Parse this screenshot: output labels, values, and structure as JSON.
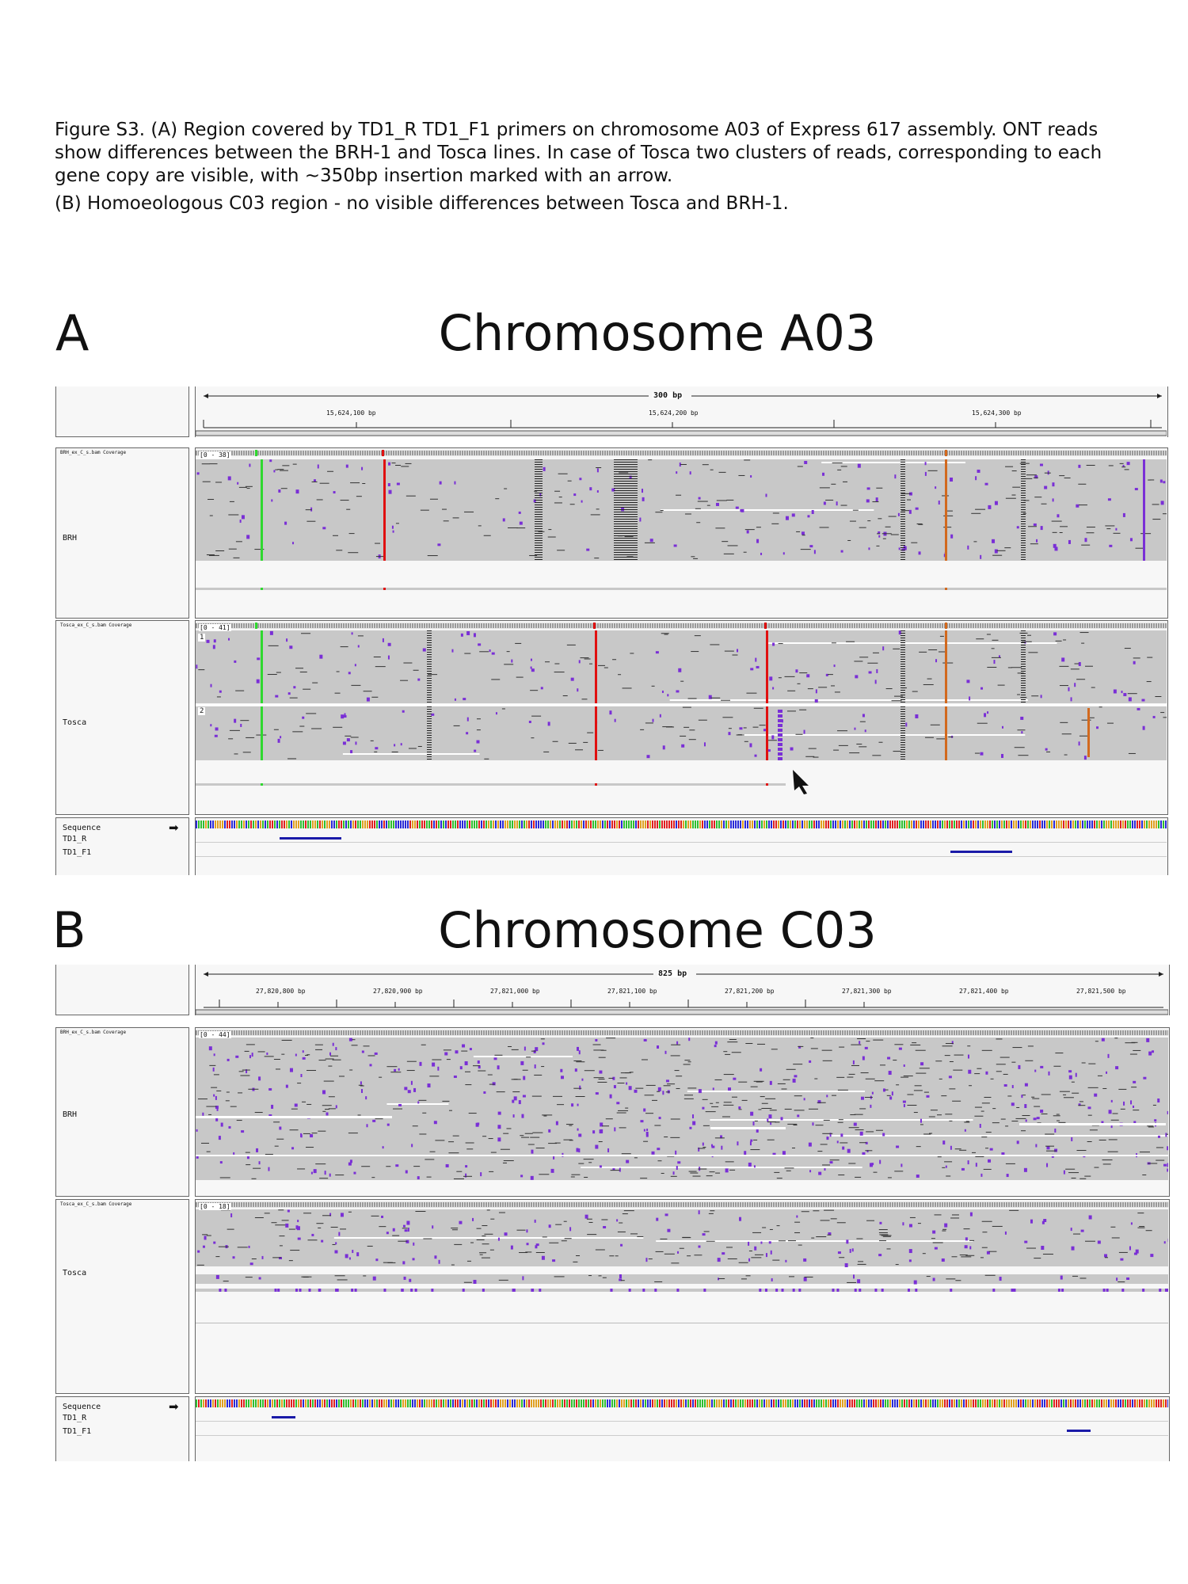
{
  "caption": {
    "line_a": "Figure S3. (A) Region covered by TD1_R TD1_F1 primers on chromosome A03 of Express 617 assembly. ONT reads show differences between the BRH-1 and Tosca lines. In case of Tosca two clusters of reads, corresponding to each gene copy are visible, with ~350bp insertion marked with an arrow.",
    "line_b": "(B) Homoeologous C03 region - no visible differences between Tosca and BRH-1."
  },
  "panels": [
    {
      "letter": "A",
      "title": "Chromosome A03",
      "span_label": "300 bp",
      "ticks": [
        "15,624,100 bp",
        "15,624,200 bp",
        "15,624,300 bp"
      ],
      "tracks": [
        {
          "coverage_label": "BRH_ex_C_s.bam Coverage",
          "range": "[0 - 38]",
          "name": "BRH"
        },
        {
          "coverage_label": "Tosca_ex_C_s.bam Coverage",
          "range": "[0 - 41]",
          "name": "Tosca",
          "clusters": [
            "1",
            "2"
          ]
        }
      ],
      "sequence_label": "Sequence",
      "feature_labels": [
        "TD1_R",
        "TD1_F1"
      ],
      "arrow_meaning": "~350bp insertion"
    },
    {
      "letter": "B",
      "title": "Chromosome C03",
      "span_label": "825 bp",
      "ticks": [
        "27,820,800 bp",
        "27,820,900 bp",
        "27,821,000 bp",
        "27,821,100 bp",
        "27,821,200 bp",
        "27,821,300 bp",
        "27,821,400 bp",
        "27,821,500 bp"
      ],
      "tracks": [
        {
          "coverage_label": "BRH_ex_C_s.bam Coverage",
          "range": "[0 - 44]",
          "name": "BRH"
        },
        {
          "coverage_label": "Tosca_ex_C_s.bam Coverage",
          "range": "[0 - 18]",
          "name": "Tosca"
        }
      ],
      "sequence_label": "Sequence",
      "feature_labels": [
        "TD1_R",
        "TD1_F1"
      ]
    }
  ],
  "colors": {
    "read": "#c8c8c8",
    "insertion": "#7a2fd6",
    "mismatch_green": "#2fd82f",
    "mismatch_red": "#e01010",
    "mismatch_orange": "#d2691e",
    "feature": "#1a1aa8"
  }
}
